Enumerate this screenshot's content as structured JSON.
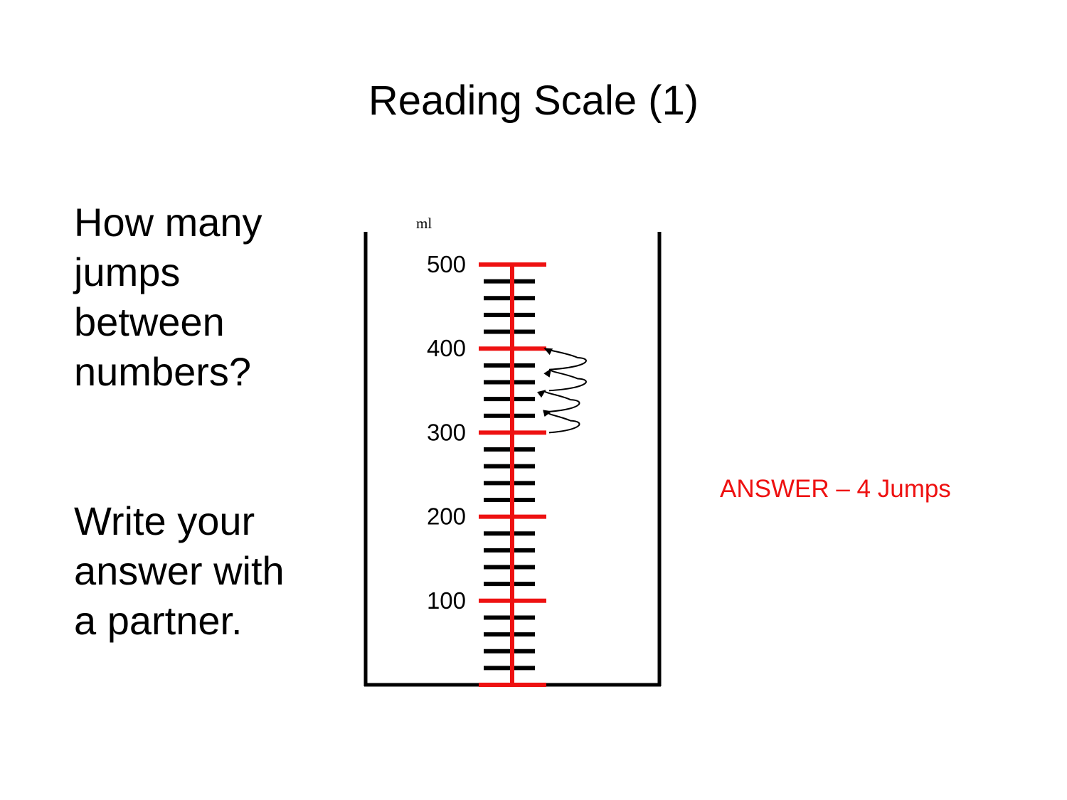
{
  "slide": {
    "title": "Reading Scale (1)",
    "question_lines": [
      "How many",
      "jumps",
      "between",
      "numbers?"
    ],
    "instruction_lines": [
      "Write your",
      "answer with",
      "a partner."
    ],
    "answer": "ANSWER – 4 Jumps"
  },
  "scale": {
    "unit": "ml",
    "min": 0,
    "max": 500,
    "labeled_values": [
      500,
      400,
      300,
      200,
      100
    ],
    "labels": [
      "500",
      "400",
      "300",
      "200",
      "100"
    ],
    "minor_per_major": 4,
    "major_color": "#ee1111",
    "minor_color": "#000000",
    "jump_arrows_from": 300,
    "jump_arrows_to": 400,
    "jump_count": 4
  }
}
